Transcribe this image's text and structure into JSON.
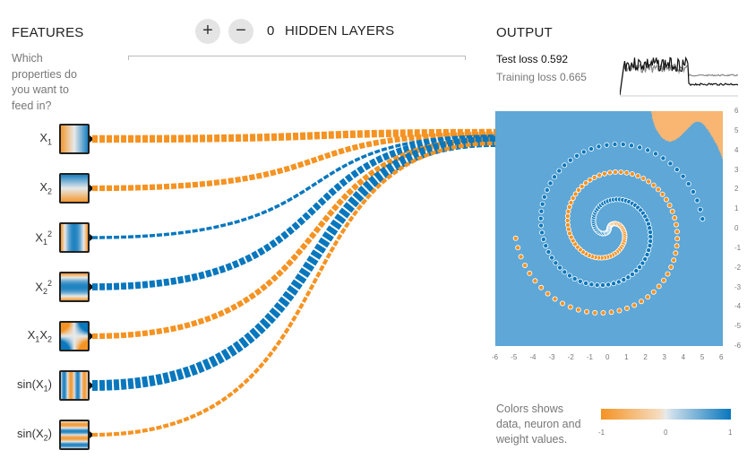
{
  "features": {
    "title": "FEATURES",
    "question": [
      "Which",
      "properties do",
      "you want to",
      "feed in?"
    ],
    "items": [
      {
        "id": "x1",
        "base": "X",
        "sub": "1",
        "sup": "",
        "type": "x1",
        "weight": 0.6
      },
      {
        "id": "x2",
        "base": "X",
        "sub": "2",
        "sup": "",
        "type": "x2",
        "weight": 0.45
      },
      {
        "id": "x1sq",
        "base": "X",
        "sub": "1",
        "sup": "2",
        "type": "x1sq",
        "weight": -0.25
      },
      {
        "id": "x2sq",
        "base": "X",
        "sub": "2",
        "sup": "2",
        "type": "x2sq",
        "weight": -0.55
      },
      {
        "id": "x1x2",
        "base": "X",
        "sub": "1",
        "sup": "",
        "base2": "X",
        "sub2": "2",
        "type": "x1x2",
        "weight": 0.45
      },
      {
        "id": "sinx1",
        "base": "sin(X",
        "sub": "1",
        "sup": "",
        "tail": ")",
        "type": "sinx1",
        "weight": -0.85
      },
      {
        "id": "sinx2",
        "base": "sin(X",
        "sub": "2",
        "sup": "",
        "tail": ")",
        "type": "sinx2",
        "weight": 0.3
      }
    ]
  },
  "layers": {
    "add_icon": "+",
    "remove_icon": "−",
    "count": "0",
    "label": "HIDDEN LAYERS"
  },
  "output": {
    "title": "OUTPUT",
    "test_loss_label": "Test loss",
    "test_loss_value": "0.592",
    "training_loss_label": "Training loss",
    "training_loss_value": "0.665",
    "y_ticks": [
      "6",
      "5",
      "4",
      "3",
      "2",
      "1",
      "0",
      "-1",
      "-2",
      "-3",
      "-4",
      "-5",
      "-6"
    ],
    "x_ticks": [
      "-6",
      "-5",
      "-4",
      "-3",
      "-2",
      "-1",
      "0",
      "1",
      "2",
      "3",
      "4",
      "5",
      "6"
    ]
  },
  "legend": {
    "text": [
      "Colors shows",
      "data, neuron and",
      "weight values."
    ],
    "min": "-1",
    "mid": "0",
    "max": "1"
  },
  "colors": {
    "orange": "#f59322",
    "blue": "#0877bd",
    "plot_blue": "#5ea7d6",
    "plot_orange": "#f8b672"
  }
}
